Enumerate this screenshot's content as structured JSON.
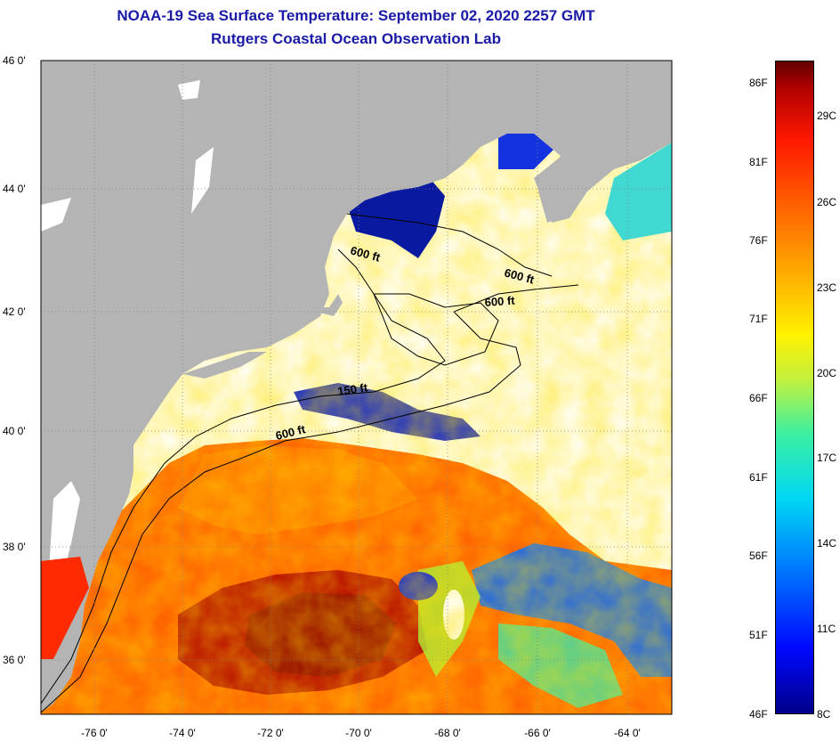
{
  "title": {
    "line1": "NOAA-19 Sea Surface Temperature:  September 02, 2020 2257 GMT",
    "line2": "Rutgers Coastal Ocean Observation Lab"
  },
  "map": {
    "lat_labels": [
      "46 0'",
      "44 0'",
      "42 0'",
      "40 0'",
      "38 0'",
      "36 0'"
    ],
    "lon_labels": [
      "-76 0'",
      "-74 0'",
      "-72 0'",
      "-70 0'",
      "-68 0'",
      "-66 0'",
      "-64 0'"
    ],
    "contour_labels": [
      "600 ft",
      "600 ft",
      "600 ft",
      "150 ft",
      "600 ft"
    ],
    "colors": {
      "land": "#b4b4b4",
      "cloud": "#ffffff",
      "warm_water": "#ff5a00",
      "hot_water": "#b40000",
      "cold_water": "#1428d2"
    }
  },
  "colorbar": {
    "fahrenheit": [
      "86F",
      "81F",
      "76F",
      "71F",
      "66F",
      "61F",
      "56F",
      "51F",
      "46F"
    ],
    "celsius": [
      "29C",
      "26C",
      "23C",
      "20C",
      "17C",
      "14C",
      "11C",
      "8C"
    ]
  }
}
